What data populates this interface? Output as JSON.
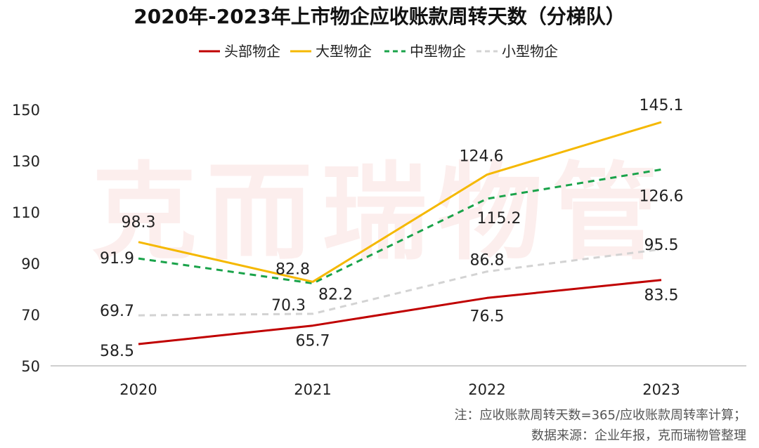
{
  "chart_data": {
    "type": "line",
    "title": "2020年-2023年上市物企应收账款周转天数（分梯队）",
    "categories": [
      "2020",
      "2021",
      "2022",
      "2023"
    ],
    "ylim": [
      50,
      150
    ],
    "yticks": [
      50,
      70,
      90,
      110,
      130,
      150
    ],
    "grid": false,
    "legend_position": "top-center",
    "series": [
      {
        "name": "头部物企",
        "values": [
          58.5,
          65.7,
          76.5,
          83.5
        ],
        "color": "#c00000",
        "dash": "solid"
      },
      {
        "name": "大型物企",
        "values": [
          98.3,
          82.8,
          124.6,
          145.1
        ],
        "color": "#f5b800",
        "dash": "solid"
      },
      {
        "name": "中型物企",
        "values": [
          91.9,
          82.2,
          115.2,
          126.6
        ],
        "color": "#1aa34a",
        "dash": "dashed"
      },
      {
        "name": "小型物企",
        "values": [
          69.7,
          70.3,
          86.8,
          95.5
        ],
        "color": "#d3d3d3",
        "dash": "dashed"
      }
    ]
  },
  "notes": [
    "注：应收账款周转天数=365/应收账款周转率计算；",
    "数据来源：企业年报，克而瑞物管整理"
  ],
  "watermark": "克而瑞物管"
}
